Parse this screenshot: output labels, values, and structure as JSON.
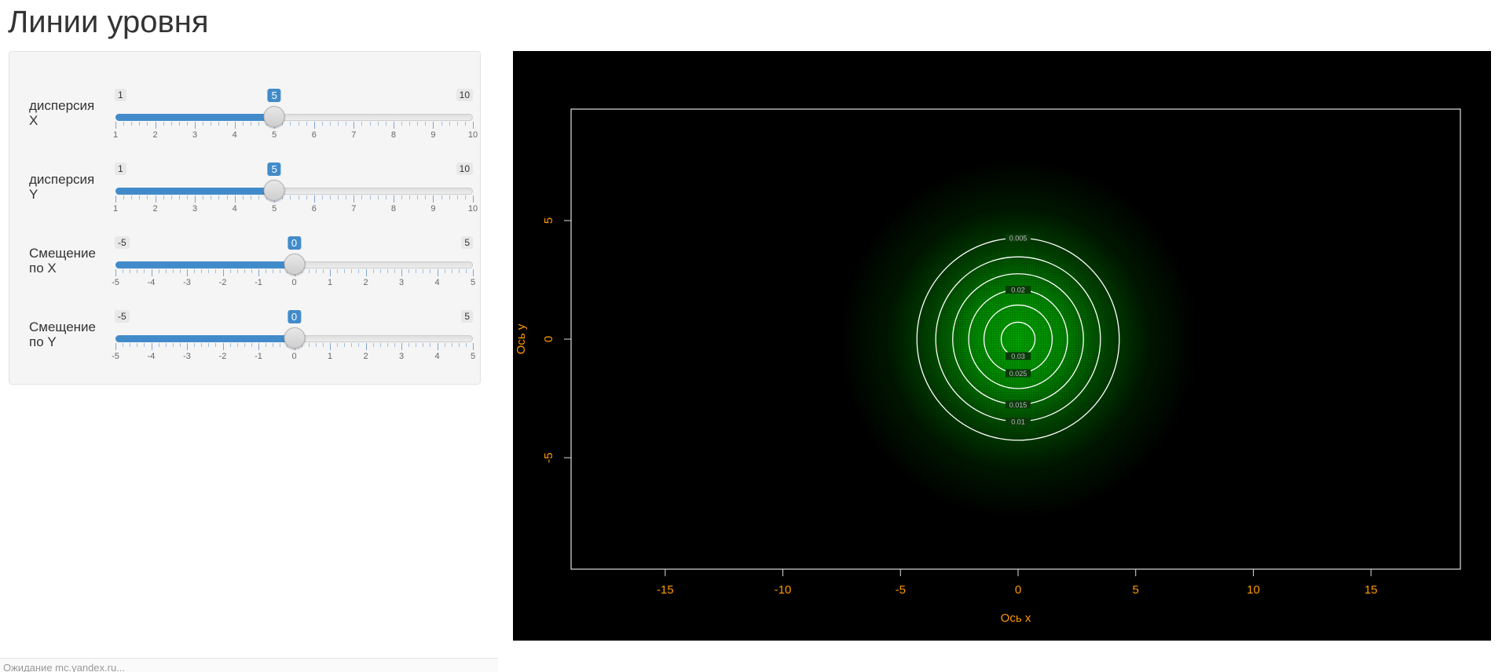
{
  "title": "Линии уровня",
  "sliders": [
    {
      "id": "var-x",
      "label_line1": "дисперсия",
      "label_line2": "X",
      "min": 1,
      "max": 10,
      "value": 5,
      "step": 1,
      "minor_per_major": 4
    },
    {
      "id": "var-y",
      "label_line1": "дисперсия",
      "label_line2": "Y",
      "min": 1,
      "max": 10,
      "value": 5,
      "step": 1,
      "minor_per_major": 4
    },
    {
      "id": "shift-x",
      "label_line1": "Смещение",
      "label_line2": "по X",
      "min": -5,
      "max": 5,
      "value": 0,
      "step": 1,
      "minor_per_major": 4
    },
    {
      "id": "shift-y",
      "label_line1": "Смещение",
      "label_line2": "по Y",
      "min": -5,
      "max": 5,
      "value": 0,
      "step": 1,
      "minor_per_major": 4
    }
  ],
  "plot": {
    "background": "#000000",
    "axis_color": "#ff9900",
    "box_color": "#dddddd",
    "contour_color": "#ffffff",
    "fill_color": "#00cc00"
  },
  "chart_data": {
    "type": "contour",
    "title": "",
    "xlabel": "Ось x",
    "ylabel": "Ось y",
    "xlim": [
      -19,
      18.8
    ],
    "ylim": [
      -9.7,
      9.7
    ],
    "x_ticks": [
      -15,
      -10,
      -5,
      0,
      5,
      10,
      15
    ],
    "y_ticks": [
      -5,
      0,
      5
    ],
    "center": [
      0,
      0
    ],
    "sd_x": 2.236,
    "sd_y": 2.236,
    "levels": [
      {
        "level": "0.005",
        "radius": 4.3
      },
      {
        "level": "0.01",
        "radius": 3.5
      },
      {
        "level": "0.015",
        "radius": 2.78
      },
      {
        "level": "0.02",
        "radius": 2.1
      },
      {
        "level": "0.025",
        "radius": 1.45
      },
      {
        "level": "0.03",
        "radius": 0.72
      }
    ],
    "grid": false,
    "legend": "none"
  },
  "status_text": "Ожидание mc.yandex.ru..."
}
